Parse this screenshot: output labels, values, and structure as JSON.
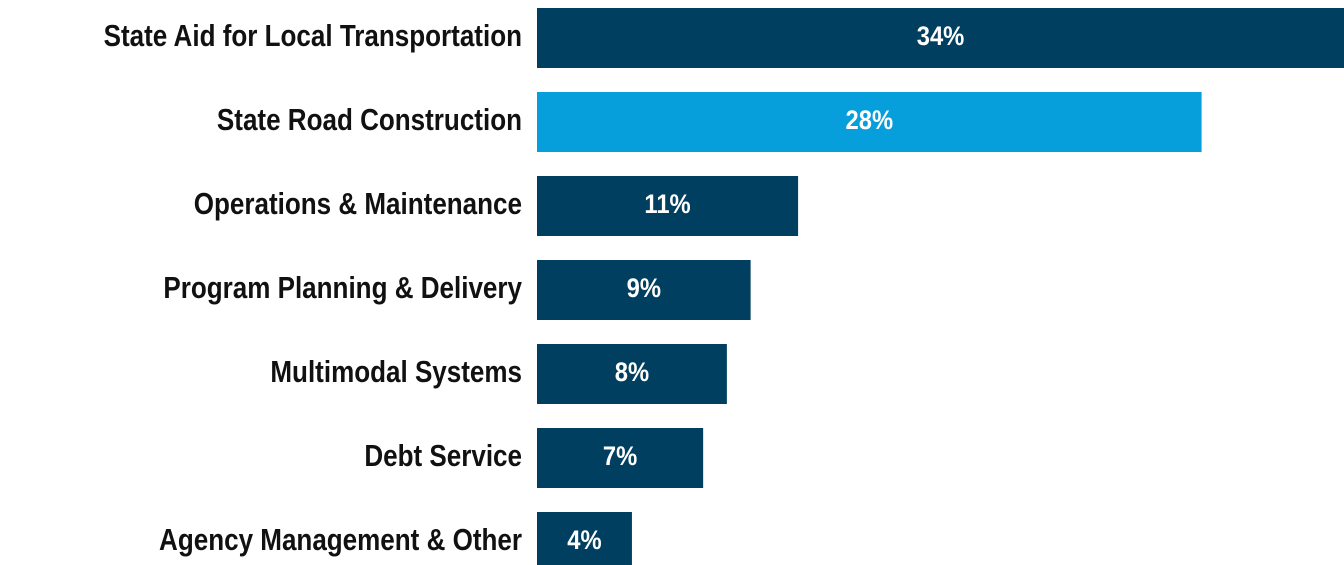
{
  "chart_data": {
    "type": "barh",
    "categories": [
      "State Aid for Local Transportation",
      "State Road Construction",
      "Operations & Maintenance",
      "Program Planning & Delivery",
      "Multimodal Systems",
      "Debt Service",
      "Agency Management & Other"
    ],
    "values": [
      34,
      28,
      11,
      9,
      8,
      7,
      4
    ],
    "value_labels": [
      "34%",
      "28%",
      "11%",
      "9%",
      "8%",
      "7%",
      "4%"
    ],
    "colors": [
      "#003f5f",
      "#069fdb",
      "#003f5f",
      "#003f5f",
      "#003f5f",
      "#003f5f",
      "#003f5f"
    ]
  }
}
